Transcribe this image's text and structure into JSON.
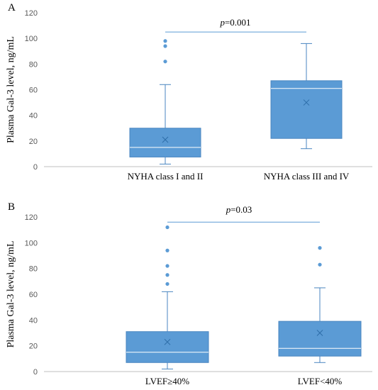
{
  "panels": [
    {
      "label": "A",
      "p_label": "p",
      "p_value": "=0.001"
    },
    {
      "label": "B",
      "p_label": "p",
      "p_value": "=0.03"
    }
  ],
  "colors": {
    "box_fill": "#5b9bd5",
    "box_stroke": "#4a86c0",
    "outlier": "#5b9bd5",
    "whisker": "#4a86c0",
    "sig_line": "#5b9bd5",
    "grid": "#d9d9d9",
    "axis": "#bfbfbf",
    "mean": "#2e6ea8"
  },
  "chart_data": [
    {
      "type": "box",
      "ylabel": "Plasma Gal-3 level, ng/mL",
      "ylim": [
        0,
        120
      ],
      "yticks": [
        0,
        20,
        40,
        60,
        80,
        100,
        120
      ],
      "grid": false,
      "categories": [
        "NYHA class I and II",
        "NYHA class III and IV"
      ],
      "boxes": [
        {
          "min": 2,
          "q1": 7.5,
          "median": 15,
          "q3": 30,
          "max": 64,
          "mean": 21,
          "outliers": [
            82,
            94,
            98
          ]
        },
        {
          "min": 14,
          "q1": 22,
          "median": 61,
          "q3": 67,
          "max": 96,
          "mean": 50,
          "outliers": []
        }
      ],
      "significance": {
        "text": "p=0.001",
        "y": 105
      }
    },
    {
      "type": "box",
      "ylabel": "Plasma Gal-3 level, ng/mL",
      "ylim": [
        0,
        120
      ],
      "yticks": [
        0,
        20,
        40,
        60,
        80,
        100,
        120
      ],
      "grid": false,
      "categories": [
        "LVEF≥40%",
        "LVEF<40%"
      ],
      "boxes": [
        {
          "min": 2,
          "q1": 7,
          "median": 15,
          "q3": 31,
          "max": 62,
          "mean": 23,
          "outliers": [
            68,
            75,
            82,
            94,
            112
          ]
        },
        {
          "min": 7,
          "q1": 12,
          "median": 18,
          "q3": 39,
          "max": 65,
          "mean": 30,
          "outliers": [
            83,
            96
          ]
        }
      ],
      "significance": {
        "text": "p=0.03",
        "y": 116
      }
    }
  ]
}
